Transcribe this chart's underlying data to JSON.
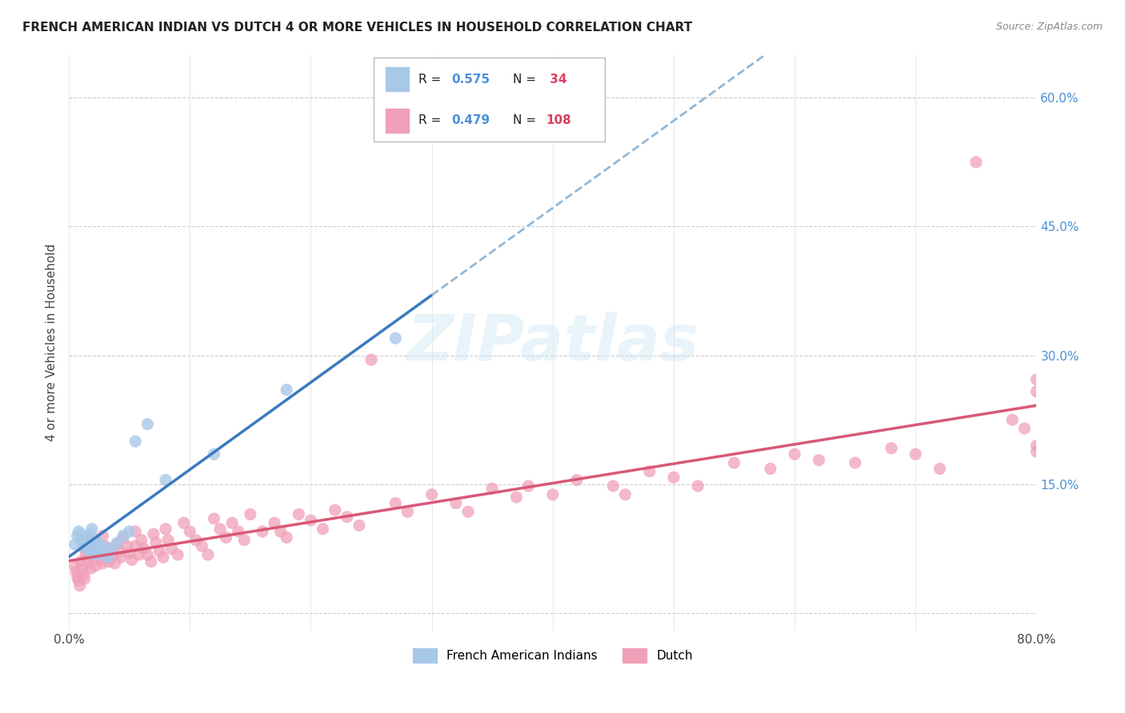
{
  "title": "FRENCH AMERICAN INDIAN VS DUTCH 4 OR MORE VEHICLES IN HOUSEHOLD CORRELATION CHART",
  "source": "Source: ZipAtlas.com",
  "ylabel": "4 or more Vehicles in Household",
  "xlim": [
    0.0,
    0.8
  ],
  "ylim": [
    -0.02,
    0.65
  ],
  "x_tick_positions": [
    0.0,
    0.1,
    0.2,
    0.3,
    0.4,
    0.5,
    0.6,
    0.7,
    0.8
  ],
  "x_tick_labels": [
    "0.0%",
    "",
    "",
    "",
    "",
    "",
    "",
    "",
    "80.0%"
  ],
  "y_tick_positions": [
    0.0,
    0.15,
    0.3,
    0.45,
    0.6
  ],
  "y_tick_labels_right": [
    "",
    "15.0%",
    "30.0%",
    "45.0%",
    "60.0%"
  ],
  "blue_color": "#a8c8e8",
  "pink_color": "#f0a0b8",
  "blue_line_color": "#3a7abf",
  "pink_line_color": "#d95878",
  "blue_dashed_color": "#90b8d8",
  "watermark": "ZIPatlas",
  "blue_scatter_x": [
    0.005,
    0.007,
    0.008,
    0.01,
    0.01,
    0.012,
    0.013,
    0.015,
    0.015,
    0.016,
    0.017,
    0.018,
    0.018,
    0.019,
    0.02,
    0.02,
    0.021,
    0.022,
    0.022,
    0.023,
    0.025,
    0.028,
    0.03,
    0.032,
    0.035,
    0.04,
    0.045,
    0.05,
    0.055,
    0.065,
    0.08,
    0.12,
    0.18,
    0.27
  ],
  "blue_scatter_y": [
    0.08,
    0.09,
    0.095,
    0.085,
    0.092,
    0.078,
    0.082,
    0.075,
    0.085,
    0.088,
    0.08,
    0.072,
    0.092,
    0.098,
    0.07,
    0.075,
    0.082,
    0.068,
    0.078,
    0.085,
    0.072,
    0.078,
    0.068,
    0.065,
    0.075,
    0.082,
    0.09,
    0.095,
    0.2,
    0.22,
    0.155,
    0.185,
    0.26,
    0.32
  ],
  "pink_scatter_x": [
    0.005,
    0.006,
    0.007,
    0.008,
    0.009,
    0.01,
    0.011,
    0.012,
    0.013,
    0.013,
    0.014,
    0.015,
    0.016,
    0.018,
    0.018,
    0.02,
    0.02,
    0.022,
    0.022,
    0.025,
    0.026,
    0.028,
    0.028,
    0.03,
    0.032,
    0.033,
    0.035,
    0.036,
    0.038,
    0.04,
    0.042,
    0.043,
    0.045,
    0.048,
    0.05,
    0.052,
    0.055,
    0.055,
    0.058,
    0.06,
    0.062,
    0.065,
    0.068,
    0.07,
    0.072,
    0.075,
    0.078,
    0.08,
    0.082,
    0.085,
    0.09,
    0.095,
    0.1,
    0.105,
    0.11,
    0.115,
    0.12,
    0.125,
    0.13,
    0.135,
    0.14,
    0.145,
    0.15,
    0.16,
    0.17,
    0.175,
    0.18,
    0.19,
    0.2,
    0.21,
    0.22,
    0.23,
    0.24,
    0.25,
    0.27,
    0.28,
    0.3,
    0.32,
    0.33,
    0.35,
    0.37,
    0.38,
    0.4,
    0.42,
    0.45,
    0.46,
    0.48,
    0.5,
    0.52,
    0.55,
    0.58,
    0.6,
    0.62,
    0.65,
    0.68,
    0.7,
    0.72,
    0.75,
    0.78,
    0.79,
    0.8,
    0.8,
    0.8,
    0.8
  ],
  "pink_scatter_y": [
    0.055,
    0.048,
    0.042,
    0.038,
    0.032,
    0.06,
    0.052,
    0.045,
    0.04,
    0.075,
    0.068,
    0.062,
    0.058,
    0.052,
    0.085,
    0.065,
    0.072,
    0.055,
    0.08,
    0.07,
    0.062,
    0.058,
    0.09,
    0.078,
    0.068,
    0.06,
    0.075,
    0.065,
    0.058,
    0.08,
    0.072,
    0.065,
    0.088,
    0.078,
    0.07,
    0.062,
    0.095,
    0.078,
    0.068,
    0.085,
    0.075,
    0.068,
    0.06,
    0.092,
    0.082,
    0.072,
    0.065,
    0.098,
    0.085,
    0.075,
    0.068,
    0.105,
    0.095,
    0.085,
    0.078,
    0.068,
    0.11,
    0.098,
    0.088,
    0.105,
    0.095,
    0.085,
    0.115,
    0.095,
    0.105,
    0.095,
    0.088,
    0.115,
    0.108,
    0.098,
    0.12,
    0.112,
    0.102,
    0.295,
    0.128,
    0.118,
    0.138,
    0.128,
    0.118,
    0.145,
    0.135,
    0.148,
    0.138,
    0.155,
    0.148,
    0.138,
    0.165,
    0.158,
    0.148,
    0.175,
    0.168,
    0.185,
    0.178,
    0.175,
    0.192,
    0.185,
    0.168,
    0.525,
    0.225,
    0.215,
    0.195,
    0.188,
    0.258,
    0.272
  ]
}
